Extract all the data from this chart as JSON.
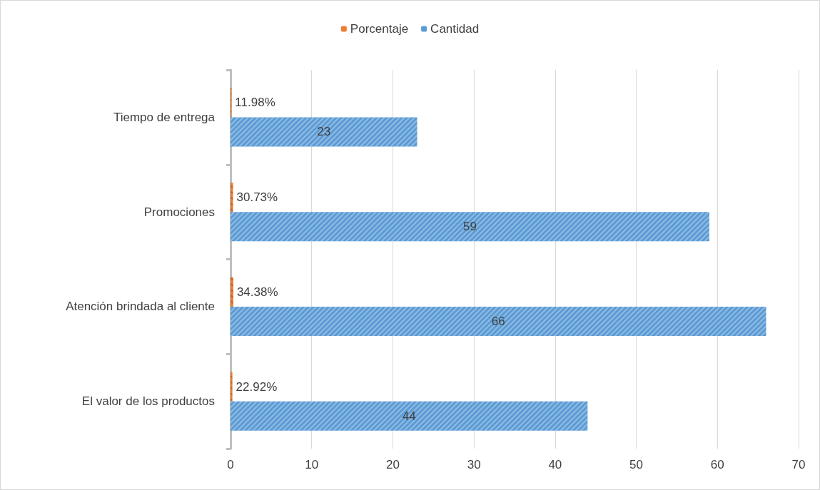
{
  "chart_data": {
    "type": "bar",
    "orientation": "horizontal",
    "categories": [
      "Tiempo de entrega",
      "Promociones",
      "Atención brindada al cliente",
      "El valor de los productos"
    ],
    "series": [
      {
        "name": "Porcentaje",
        "color": "#ed7d31",
        "values": [
          0.1198,
          0.3073,
          0.3438,
          0.2292
        ],
        "value_labels": [
          "11.98%",
          "30.73%",
          "34.38%",
          "22.92%"
        ]
      },
      {
        "name": "Cantidad",
        "color": "#5b9bd5",
        "values": [
          23,
          59,
          66,
          44
        ],
        "value_labels": [
          "23",
          "59",
          "66",
          "44"
        ]
      }
    ],
    "xlim": [
      0,
      70
    ],
    "xticks": [
      0,
      10,
      20,
      30,
      40,
      50,
      60,
      70
    ],
    "grid": "x",
    "legend": "top"
  }
}
